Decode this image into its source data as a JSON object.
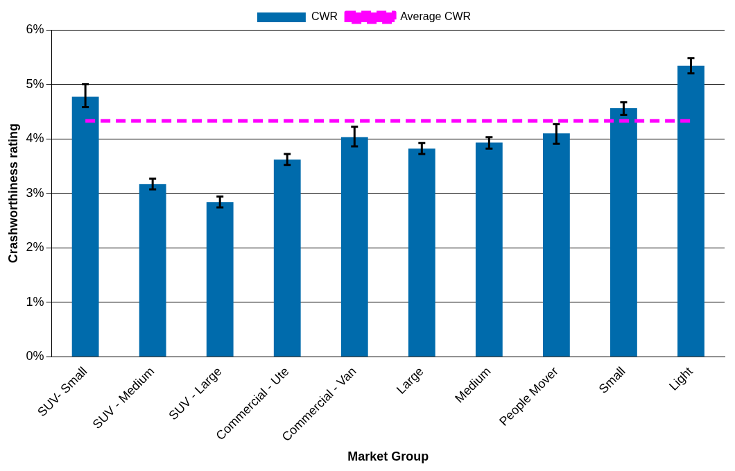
{
  "chart_data": {
    "type": "bar",
    "xlabel": "Market Group",
    "ylabel": "Crashworthiness rating",
    "categories": [
      "SUV- Small",
      "SUV - Medium",
      "SUV - Large",
      "Commercial - Ute",
      "Commercial - Van",
      "Large",
      "Medium",
      "People Mover",
      "Small",
      "Light"
    ],
    "series": [
      {
        "name": "CWR",
        "color": "#006bac",
        "values": [
          4.77,
          3.17,
          2.84,
          3.62,
          4.03,
          3.82,
          3.93,
          4.1,
          4.56,
          5.34
        ],
        "errors": [
          [
            4.58,
            5.0
          ],
          [
            3.07,
            3.27
          ],
          [
            2.74,
            2.94
          ],
          [
            3.52,
            3.72
          ],
          [
            3.86,
            4.22
          ],
          [
            3.72,
            3.92
          ],
          [
            3.82,
            4.03
          ],
          [
            3.91,
            4.27
          ],
          [
            4.44,
            4.67
          ],
          [
            5.2,
            5.48
          ]
        ]
      },
      {
        "name": "Average CWR",
        "type": "line",
        "color": "#ff00ff",
        "line_style": "dashed",
        "marker": "none",
        "values": [
          4.33,
          4.33,
          4.33,
          4.33,
          4.33,
          4.33,
          4.33,
          4.33,
          4.33,
          4.33
        ]
      }
    ],
    "ylim": [
      0,
      6
    ],
    "yticks": [
      {
        "value": 0,
        "label": "0%"
      },
      {
        "value": 1,
        "label": "1%"
      },
      {
        "value": 2,
        "label": "2%"
      },
      {
        "value": 3,
        "label": "3%"
      },
      {
        "value": 4,
        "label": "4%"
      },
      {
        "value": 5,
        "label": "5%"
      },
      {
        "value": 6,
        "label": "6%"
      }
    ],
    "grid": "y",
    "legend": "top"
  }
}
